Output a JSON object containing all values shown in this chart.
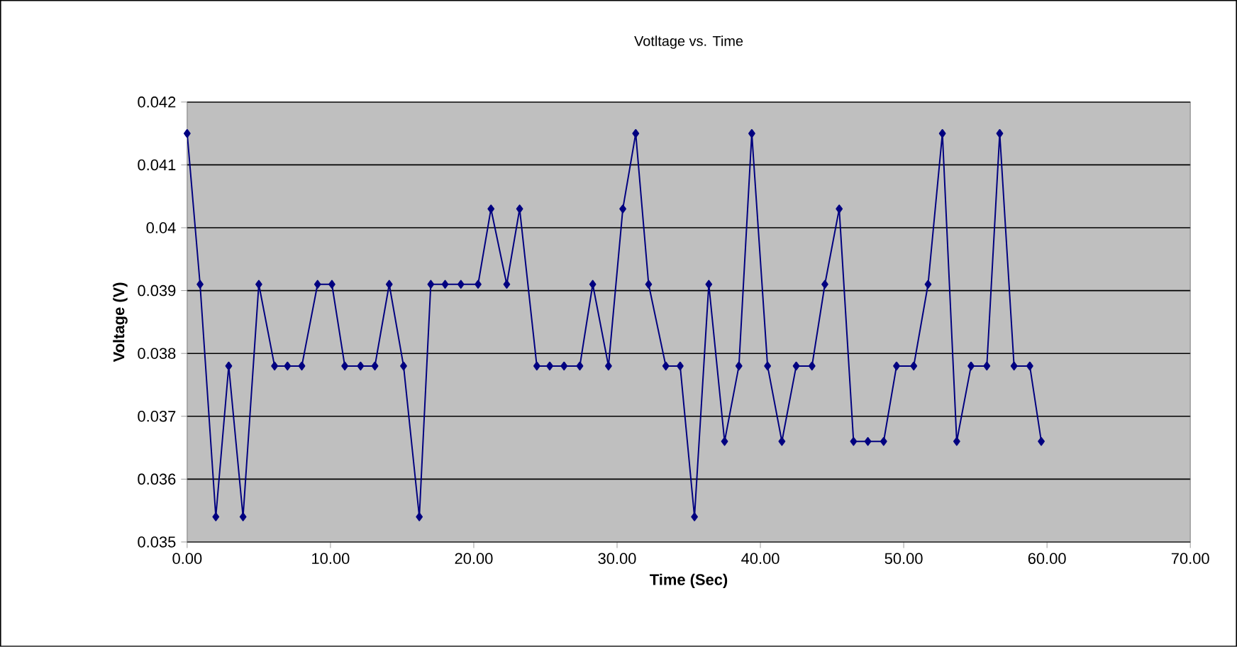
{
  "chart_data": {
    "type": "line",
    "title": "Votltage vs. Time",
    "xlabel": "Time (Sec)",
    "ylabel": "Voltage (V)",
    "xlim": [
      0,
      70
    ],
    "ylim": [
      0.035,
      0.042
    ],
    "xticks": [
      {
        "value": 0,
        "label": "0.00"
      },
      {
        "value": 10,
        "label": "10.00"
      },
      {
        "value": 20,
        "label": "20.00"
      },
      {
        "value": 30,
        "label": "30.00"
      },
      {
        "value": 40,
        "label": "40.00"
      },
      {
        "value": 50,
        "label": "50.00"
      },
      {
        "value": 60,
        "label": "60.00"
      },
      {
        "value": 70,
        "label": "70.00"
      }
    ],
    "yticks": [
      0.035,
      0.036,
      0.037,
      0.038,
      0.039,
      0.04,
      0.041,
      0.042
    ],
    "grid": "y",
    "marker": "diamond",
    "line_style": "solid",
    "series": [
      {
        "color": "#000080",
        "x": [
          0.0,
          0.9,
          2.0,
          2.9,
          3.9,
          5.0,
          6.1,
          7.0,
          8.0,
          9.1,
          10.1,
          11.0,
          12.1,
          13.1,
          14.1,
          15.1,
          16.2,
          17.0,
          18.0,
          19.1,
          20.3,
          21.2,
          22.3,
          23.2,
          24.4,
          25.3,
          26.3,
          27.4,
          28.3,
          29.4,
          30.4,
          31.3,
          32.2,
          33.4,
          34.4,
          35.4,
          36.4,
          37.5,
          38.5,
          39.4,
          40.5,
          41.5,
          42.5,
          43.6,
          44.5,
          45.5,
          46.5,
          47.5,
          48.6,
          49.5,
          50.7,
          51.7,
          52.7,
          53.7,
          54.7,
          55.8,
          56.7,
          57.7,
          58.8,
          59.6
        ],
        "values": [
          0.0415,
          0.0391,
          0.0354,
          0.0378,
          0.0354,
          0.0391,
          0.0378,
          0.0378,
          0.0378,
          0.0391,
          0.0391,
          0.0378,
          0.0378,
          0.0378,
          0.0391,
          0.0378,
          0.0354,
          0.0391,
          0.0391,
          0.0391,
          0.0391,
          0.0403,
          0.0391,
          0.0403,
          0.0378,
          0.0378,
          0.0378,
          0.0378,
          0.0391,
          0.0378,
          0.0403,
          0.0415,
          0.0391,
          0.0378,
          0.0378,
          0.0354,
          0.0391,
          0.0366,
          0.0378,
          0.0415,
          0.0378,
          0.0366,
          0.0378,
          0.0378,
          0.0391,
          0.0403,
          0.0366,
          0.0366,
          0.0366,
          0.0378,
          0.0378,
          0.0391,
          0.0415,
          0.0366,
          0.0378,
          0.0378,
          0.0415,
          0.0378,
          0.0378,
          0.0366
        ]
      }
    ]
  }
}
